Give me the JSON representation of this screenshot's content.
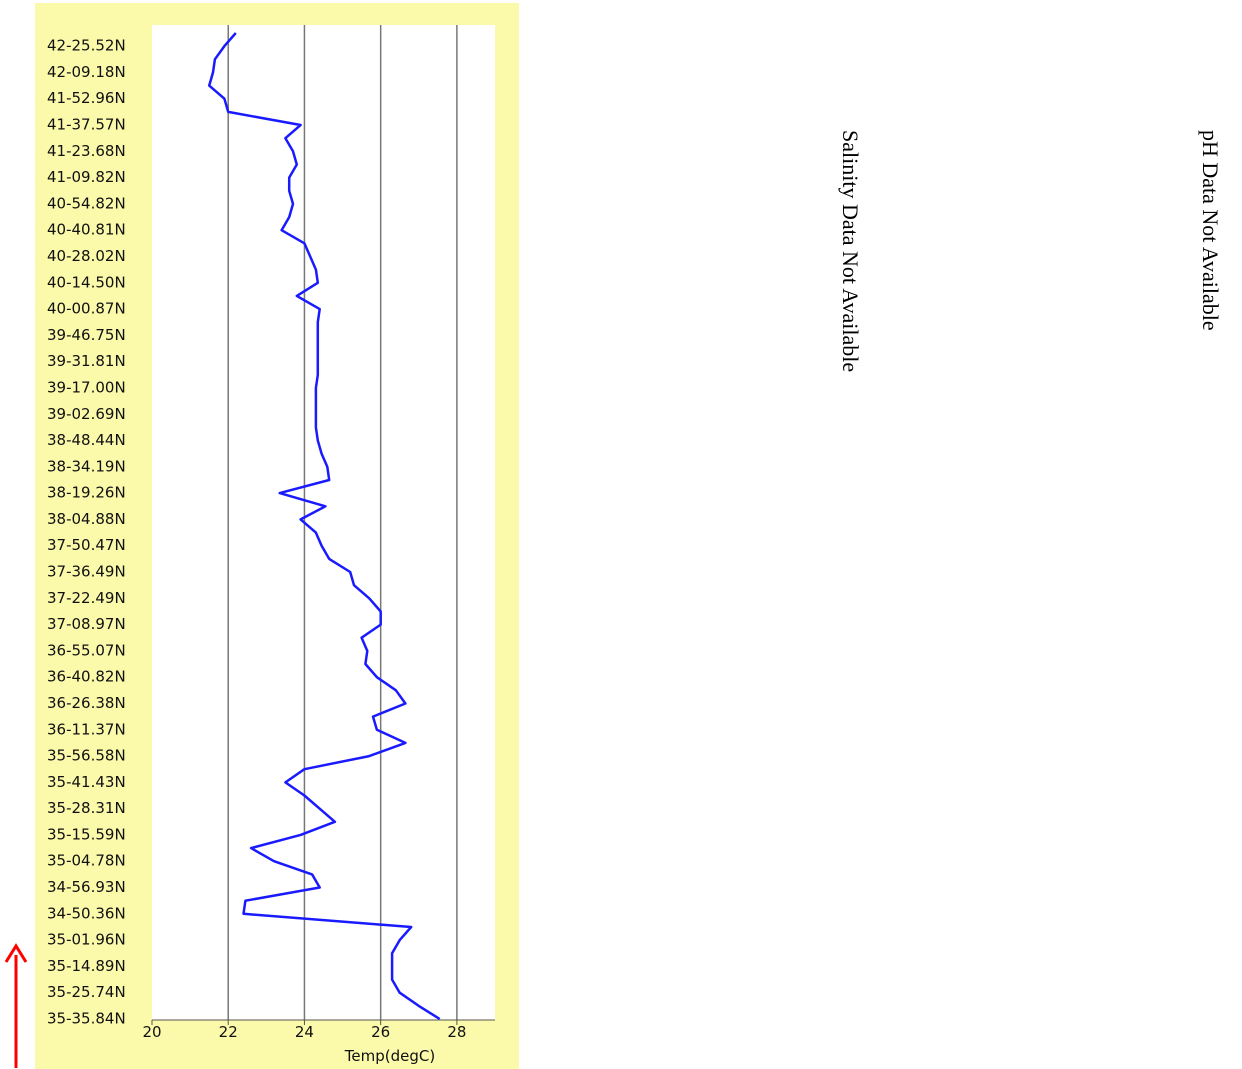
{
  "chart_data": {
    "type": "line",
    "orientation": "horizontal",
    "x_label": "Temp(degC)",
    "color": "#1a1aff",
    "categories": [
      null,
      "42-25.52N",
      null,
      "42-09.18N",
      null,
      "41-52.96N",
      null,
      "41-37.57N",
      null,
      "41-23.68N",
      null,
      "41-09.82N",
      null,
      "40-54.82N",
      null,
      "40-40.81N",
      null,
      "40-28.02N",
      null,
      "40-14.50N",
      null,
      "40-00.87N",
      null,
      "39-46.75N",
      null,
      "39-31.81N",
      null,
      "39-17.00N",
      null,
      "39-02.69N",
      null,
      "38-48.44N",
      null,
      "38-34.19N",
      null,
      "38-19.26N",
      null,
      "38-04.88N",
      null,
      "37-50.47N",
      null,
      "37-36.49N",
      null,
      "37-22.49N",
      null,
      "37-08.97N",
      null,
      "36-55.07N",
      null,
      "36-40.82N",
      null,
      "36-26.38N",
      null,
      "36-11.37N",
      null,
      "35-56.58N",
      null,
      "35-41.43N",
      null,
      "35-28.31N",
      null,
      "35-15.59N",
      null,
      "35-04.78N",
      null,
      "34-56.93N",
      null,
      "34-50.36N",
      null,
      "35-01.96N",
      null,
      "35-14.89N",
      null,
      "35-25.74N",
      null,
      "35-35.84N"
    ],
    "values": [
      22.2,
      21.9,
      21.65,
      21.6,
      21.5,
      21.9,
      22.0,
      23.9,
      23.5,
      23.7,
      23.8,
      23.6,
      23.6,
      23.7,
      23.6,
      23.4,
      24.0,
      24.15,
      24.3,
      24.35,
      23.8,
      24.4,
      24.35,
      24.35,
      24.35,
      24.35,
      24.35,
      24.3,
      24.3,
      24.3,
      24.3,
      24.35,
      24.45,
      24.6,
      24.65,
      23.35,
      24.55,
      23.9,
      24.3,
      24.45,
      24.65,
      25.2,
      25.3,
      25.7,
      26.0,
      26.0,
      25.5,
      25.65,
      25.6,
      25.9,
      26.4,
      26.65,
      25.8,
      25.9,
      26.65,
      25.7,
      24.0,
      23.5,
      24.0,
      24.4,
      24.8,
      23.9,
      22.6,
      23.2,
      24.2,
      24.4,
      22.45,
      22.4,
      26.8,
      26.5,
      26.3,
      26.3,
      26.3,
      26.5,
      27.0,
      27.55
    ],
    "xlim": [
      20,
      29
    ],
    "xticks": [
      20,
      22,
      24,
      26,
      28
    ],
    "grid": true
  },
  "notes": [
    "Salinity Data Not Available",
    "pH Data Not Available"
  ]
}
